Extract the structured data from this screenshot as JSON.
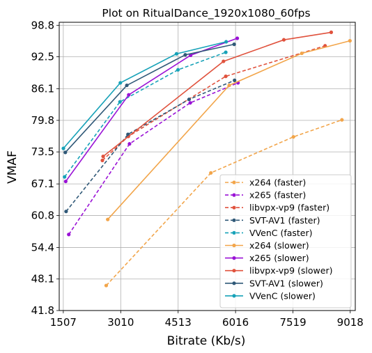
{
  "chart_data": {
    "type": "line",
    "title": "Plot on RitualDance_1920x1080_60fps",
    "xlabel": "Bitrate (Kb/s)",
    "ylabel": "VMAF",
    "xlim": [
      1400,
      9150
    ],
    "ylim": [
      41.8,
      99.4
    ],
    "xticks": [
      1507,
      3010,
      4513,
      6016,
      7519,
      9018
    ],
    "xtick_labels": [
      "1507",
      "3010",
      "4513",
      "6016",
      "7519",
      "9018"
    ],
    "yticks": [
      41.8,
      48.1,
      54.4,
      60.8,
      67.1,
      73.5,
      79.8,
      86.1,
      92.5,
      98.8
    ],
    "ytick_labels": [
      "41.8",
      "48.1",
      "54.4",
      "60.8",
      "67.1",
      "73.5",
      "79.8",
      "86.1",
      "92.5",
      "98.8"
    ],
    "grid": true,
    "legend_position": "lower-right",
    "series": [
      {
        "name": "x264 (faster)",
        "color": "#f2a54a",
        "dashed": true,
        "x": [
          2630,
          5370,
          7530,
          8800
        ],
        "y": [
          46.8,
          69.3,
          76.5,
          79.9
        ]
      },
      {
        "name": "x265 (faster)",
        "color": "#9a12d6",
        "dashed": true,
        "x": [
          1650,
          3240,
          4830,
          6080
        ],
        "y": [
          57.0,
          75.1,
          83.3,
          87.3
        ]
      },
      {
        "name": "libvpx-vp9 (faster)",
        "color": "#e0523d",
        "dashed": true,
        "x": [
          2530,
          3210,
          5760,
          8360
        ],
        "y": [
          71.8,
          76.6,
          88.6,
          94.7
        ]
      },
      {
        "name": "SVT-AV1 (faster)",
        "color": "#2f5877",
        "dashed": true,
        "x": [
          1580,
          3200,
          4800,
          5990
        ],
        "y": [
          61.6,
          77.0,
          84.0,
          87.8
        ]
      },
      {
        "name": "VVenC (faster)",
        "color": "#17a2b8",
        "dashed": true,
        "x": [
          1540,
          2990,
          4510,
          5760
        ],
        "y": [
          68.5,
          83.5,
          89.9,
          93.4
        ]
      },
      {
        "name": "x264 (slower)",
        "color": "#f2a54a",
        "dashed": false,
        "x": [
          2670,
          5850,
          7750,
          9010
        ],
        "y": [
          60.0,
          86.8,
          93.2,
          95.7
        ]
      },
      {
        "name": "x265 (slower)",
        "color": "#9a12d6",
        "dashed": false,
        "x": [
          1570,
          3220,
          4840,
          6060
        ],
        "y": [
          67.6,
          84.9,
          92.8,
          96.2
        ]
      },
      {
        "name": "libvpx-vp9 (slower)",
        "color": "#e0523d",
        "dashed": false,
        "x": [
          2550,
          5700,
          7280,
          8520
        ],
        "y": [
          72.6,
          91.6,
          95.9,
          97.4
        ]
      },
      {
        "name": "SVT-AV1 (slower)",
        "color": "#2f5877",
        "dashed": false,
        "x": [
          1560,
          3170,
          4700,
          5980
        ],
        "y": [
          73.4,
          86.8,
          92.9,
          95.0
        ]
      },
      {
        "name": "VVenC (slower)",
        "color": "#17a2b8",
        "dashed": false,
        "x": [
          1510,
          3000,
          4470,
          5770
        ],
        "y": [
          74.2,
          87.3,
          93.1,
          95.5
        ]
      }
    ]
  }
}
